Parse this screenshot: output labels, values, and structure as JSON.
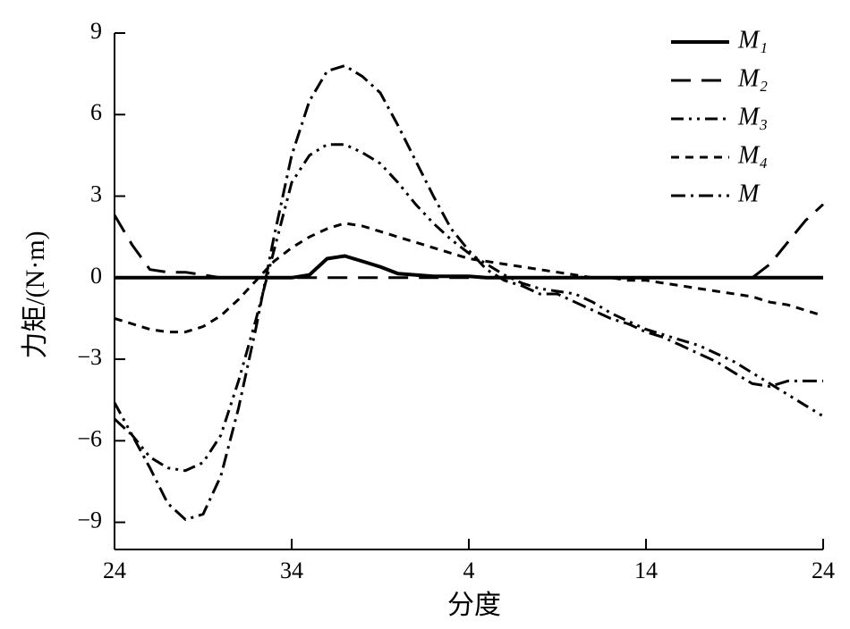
{
  "chart_data": {
    "type": "line",
    "xlabel": "分度",
    "ylabel": "力矩/(N·m)",
    "x": [
      0,
      1,
      2,
      3,
      4,
      5,
      6,
      7,
      8,
      9,
      10,
      11,
      12,
      13,
      14,
      15,
      16,
      17,
      18,
      19,
      20,
      21,
      22,
      23,
      24,
      25,
      26,
      27,
      28,
      29,
      30,
      31,
      32,
      33,
      34,
      35,
      36,
      37,
      38,
      39,
      40
    ],
    "xlim": [
      0,
      40
    ],
    "xticks": [
      {
        "value": 0,
        "label": "24"
      },
      {
        "value": 10,
        "label": "34"
      },
      {
        "value": 20,
        "label": "4"
      },
      {
        "value": 30,
        "label": "14"
      },
      {
        "value": 40,
        "label": "24"
      }
    ],
    "ylim": [
      -10,
      9
    ],
    "yticks": [
      {
        "value": -9,
        "label": "−9"
      },
      {
        "value": -6,
        "label": "−6"
      },
      {
        "value": -3,
        "label": "−3"
      },
      0,
      3,
      6,
      9
    ],
    "legend": "upper-right",
    "series": [
      {
        "name": "M₁",
        "color": "#000000",
        "dash": "solid",
        "values": [
          0,
          0,
          0,
          0,
          0,
          0,
          0,
          0,
          0,
          0,
          0,
          0.1,
          0.7,
          0.8,
          0.6,
          0.4,
          0.15,
          0.1,
          0.05,
          0.05,
          0.05,
          0,
          0,
          0,
          0,
          0,
          0,
          0,
          0,
          0,
          0,
          0,
          0,
          0,
          0,
          0,
          0,
          0,
          0,
          0,
          0
        ]
      },
      {
        "name": "M₂",
        "color": "#000000",
        "dash": "long-dash",
        "values": [
          2.3,
          1.2,
          0.3,
          0.2,
          0.2,
          0.1,
          0,
          0,
          0,
          0,
          0,
          0,
          0,
          0,
          0,
          0,
          0,
          0,
          0,
          0,
          0,
          0,
          0,
          0,
          0,
          0,
          0,
          0,
          0,
          0,
          0,
          0,
          0,
          0,
          0,
          0,
          0,
          0.5,
          1.3,
          2.1,
          2.7
        ]
      },
      {
        "name": "M₃",
        "color": "#000000",
        "dash": "dash-dot-dot",
        "values": [
          -4.6,
          -5.8,
          -6.6,
          -7.0,
          -7.1,
          -6.8,
          -5.8,
          -3.8,
          -1.5,
          1.0,
          3.5,
          4.5,
          4.9,
          4.9,
          4.6,
          4.2,
          3.5,
          2.7,
          2.0,
          1.4,
          0.9,
          0.5,
          0.1,
          -0.2,
          -0.4,
          -0.5,
          -0.6,
          -0.9,
          -1.3,
          -1.6,
          -1.9,
          -2.1,
          -2.3,
          -2.5,
          -2.8,
          -3.1,
          -3.5,
          -3.9,
          -4.3,
          -4.7,
          -5.1
        ]
      },
      {
        "name": "M₄",
        "color": "#000000",
        "dash": "short-dash",
        "values": [
          -1.5,
          -1.7,
          -1.9,
          -2.0,
          -2.0,
          -1.8,
          -1.4,
          -0.8,
          -0.1,
          0.6,
          1.1,
          1.5,
          1.8,
          2.0,
          1.9,
          1.7,
          1.5,
          1.3,
          1.1,
          0.9,
          0.7,
          0.6,
          0.5,
          0.4,
          0.3,
          0.2,
          0.1,
          0,
          0,
          -0.1,
          -0.1,
          -0.2,
          -0.3,
          -0.4,
          -0.5,
          -0.6,
          -0.7,
          -0.9,
          -1.0,
          -1.2,
          -1.4
        ]
      },
      {
        "name": "M",
        "color": "#000000",
        "dash": "dash-dot",
        "values": [
          -5.2,
          -5.8,
          -7.0,
          -8.3,
          -8.9,
          -8.7,
          -7.3,
          -4.8,
          -1.8,
          1.5,
          4.5,
          6.5,
          7.6,
          7.8,
          7.4,
          6.8,
          5.6,
          4.3,
          3.0,
          1.8,
          1.0,
          0.3,
          -0.1,
          -0.3,
          -0.6,
          -0.6,
          -0.9,
          -1.2,
          -1.5,
          -1.7,
          -2.0,
          -2.2,
          -2.5,
          -2.8,
          -3.1,
          -3.5,
          -3.9,
          -4.0,
          -3.8,
          -3.8,
          -3.8
        ]
      }
    ]
  }
}
